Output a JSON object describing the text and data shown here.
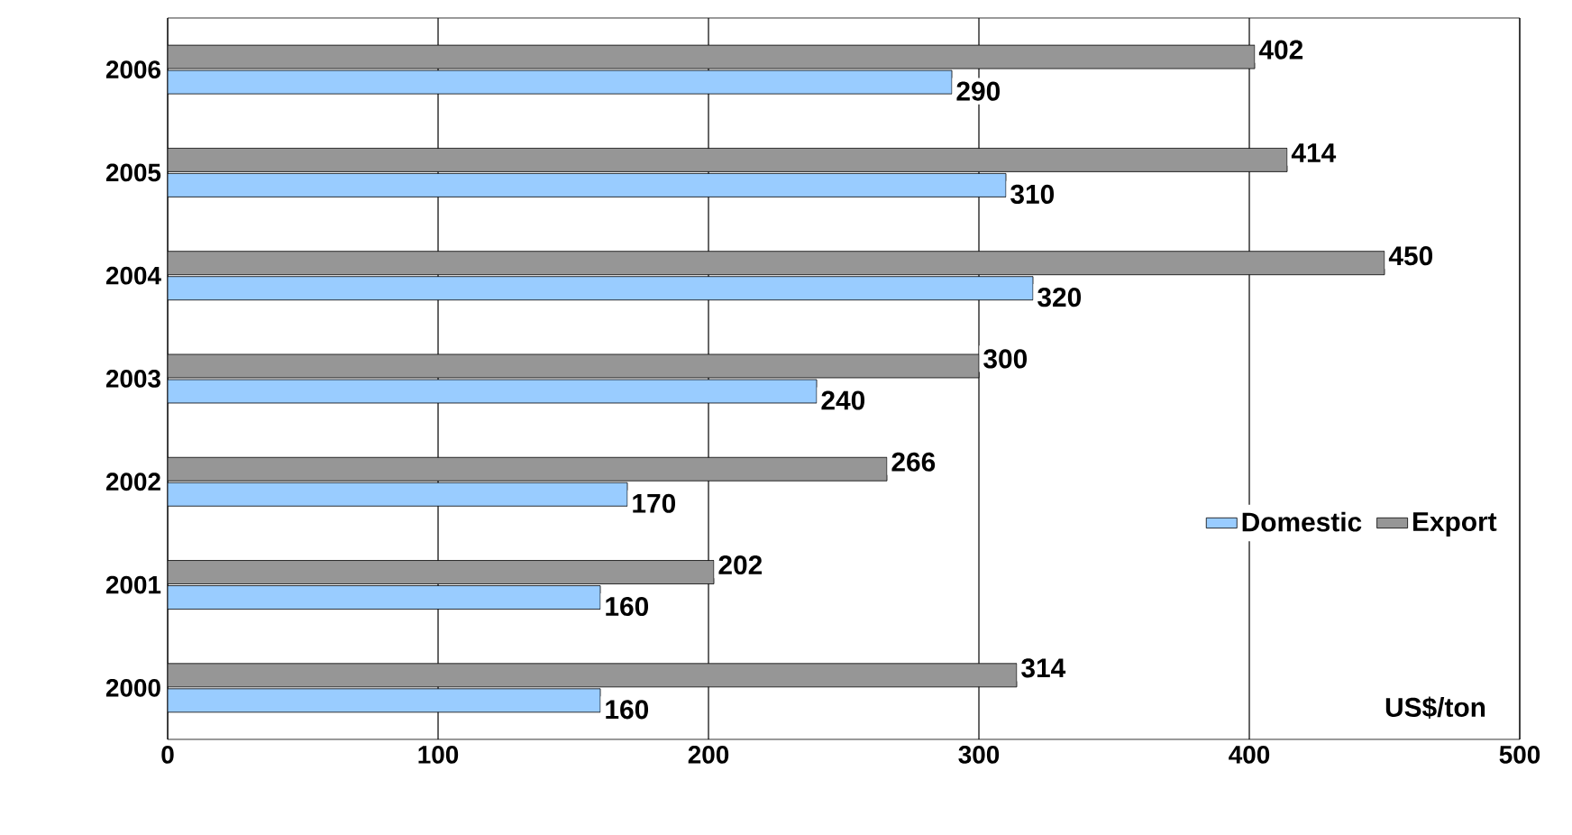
{
  "chart_data": {
    "type": "bar",
    "orientation": "horizontal",
    "categories": [
      "2006",
      "2005",
      "2004",
      "2003",
      "2002",
      "2001",
      "2000"
    ],
    "series": [
      {
        "name": "Domestic",
        "color": "#99ccff",
        "values": [
          290,
          310,
          320,
          240,
          170,
          160,
          160
        ]
      },
      {
        "name": "Export",
        "color": "#969696",
        "values": [
          402,
          414,
          450,
          300,
          266,
          202,
          314
        ]
      }
    ],
    "xlim": [
      0,
      500
    ],
    "xticks": [
      0,
      100,
      200,
      300,
      400,
      500
    ],
    "grid": "x",
    "legend": "right",
    "data_labels": true,
    "annotations": [
      "US$/ton"
    ]
  }
}
